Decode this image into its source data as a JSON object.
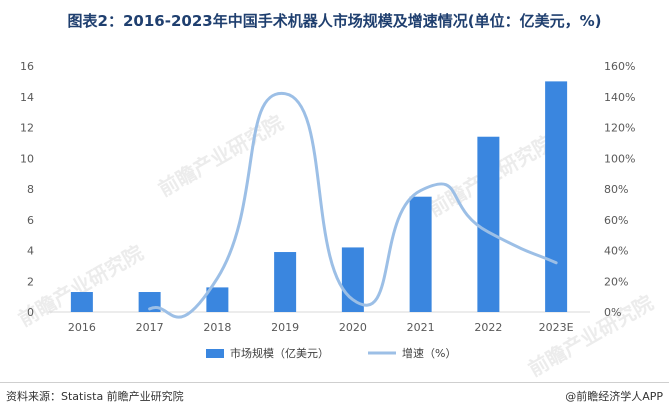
{
  "title": "图表2：2016-2023年中国手术机器人市场规模及增速情况(单位：亿美元，%)",
  "source": "资料来源：Statista 前瞻产业研究院",
  "brand": "@前瞻经济学人APP",
  "watermark": "前瞻产业研究院",
  "colors": {
    "bar": "#3a86df",
    "line": "#9cbfe6",
    "axis": "#d9d9d9"
  },
  "chart_data": {
    "type": "bar",
    "categories": [
      "2016",
      "2017",
      "2018",
      "2019",
      "2020",
      "2021",
      "2022",
      "2023E"
    ],
    "series": [
      {
        "name": "市场规模（亿美元）",
        "type": "bar",
        "axis": "left",
        "values": [
          1.3,
          1.3,
          1.6,
          3.9,
          4.2,
          7.5,
          11.4,
          15.0
        ]
      },
      {
        "name": "增速（%）",
        "type": "line",
        "axis": "right",
        "smooth": true,
        "values": [
          null,
          2,
          22,
          142,
          8,
          79,
          52,
          32
        ]
      }
    ],
    "y_left": {
      "min": 0,
      "max": 16,
      "step": 2,
      "ticks": [
        "0",
        "2",
        "4",
        "6",
        "8",
        "10",
        "12",
        "14",
        "16"
      ]
    },
    "y_right": {
      "min": 0,
      "max": 160,
      "step": 20,
      "ticks": [
        "0%",
        "20%",
        "40%",
        "60%",
        "80%",
        "100%",
        "120%",
        "140%",
        "160%"
      ]
    },
    "legend_position": "bottom",
    "grid": false
  }
}
